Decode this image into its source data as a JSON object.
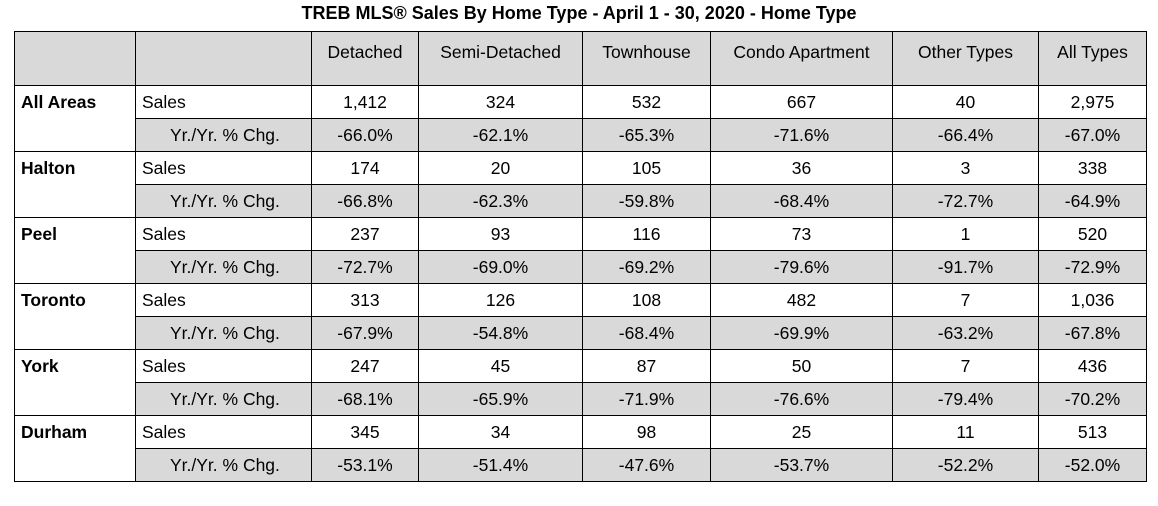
{
  "title": "TREB MLS® Sales  By Home Type - April 1 - 30, 2020 - Home Type",
  "chart_data": {
    "type": "table",
    "title": "TREB MLS® Sales  By Home Type - April 1 - 30, 2020 - Home Type",
    "columns": [
      "Detached",
      "Semi-Detached",
      "Townhouse",
      "Condo Apartment",
      "Other Types",
      "All Types"
    ],
    "metrics": [
      "Sales",
      "Yr./Yr. % Chg."
    ],
    "rows": [
      {
        "area": "All Areas",
        "sales": [
          "1,412",
          "324",
          "532",
          "667",
          "40",
          "2,975"
        ],
        "chg": [
          "-66.0%",
          "-62.1%",
          "-65.3%",
          "-71.6%",
          "-66.4%",
          "-67.0%"
        ]
      },
      {
        "area": "Halton",
        "sales": [
          "174",
          "20",
          "105",
          "36",
          "3",
          "338"
        ],
        "chg": [
          "-66.8%",
          "-62.3%",
          "-59.8%",
          "-68.4%",
          "-72.7%",
          "-64.9%"
        ]
      },
      {
        "area": "Peel",
        "sales": [
          "237",
          "93",
          "116",
          "73",
          "1",
          "520"
        ],
        "chg": [
          "-72.7%",
          "-69.0%",
          "-69.2%",
          "-79.6%",
          "-91.7%",
          "-72.9%"
        ]
      },
      {
        "area": "Toronto",
        "sales": [
          "313",
          "126",
          "108",
          "482",
          "7",
          "1,036"
        ],
        "chg": [
          "-67.9%",
          "-54.8%",
          "-68.4%",
          "-69.9%",
          "-63.2%",
          "-67.8%"
        ]
      },
      {
        "area": "York",
        "sales": [
          "247",
          "45",
          "87",
          "50",
          "7",
          "436"
        ],
        "chg": [
          "-68.1%",
          "-65.9%",
          "-71.9%",
          "-76.6%",
          "-79.4%",
          "-70.2%"
        ]
      },
      {
        "area": "Durham",
        "sales": [
          "345",
          "34",
          "98",
          "25",
          "11",
          "513"
        ],
        "chg": [
          "-53.1%",
          "-51.4%",
          "-47.6%",
          "-53.7%",
          "-52.2%",
          "-52.0%"
        ]
      }
    ]
  },
  "colors": {
    "header_fill": "#d9d9d9",
    "change_row_fill": "#d9d9d9",
    "border": "#000000"
  }
}
